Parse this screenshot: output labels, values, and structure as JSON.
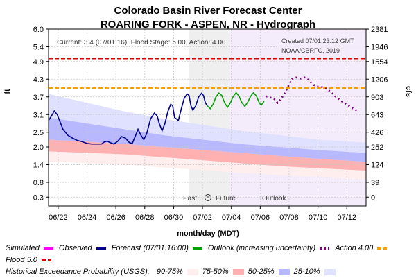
{
  "chart_data": {
    "type": "line",
    "title": "Colorado Basin River Forecast Center",
    "subtitle": "ROARING FORK - ASPEN, NR - Hydrograph",
    "xlabel": "month/day (MDT)",
    "ylabel": "ft",
    "y2label": "cfs",
    "ylim": [
      0.0,
      6.0
    ],
    "yticks": [
      "6.0",
      "5.4",
      "4.9",
      "4.3",
      "3.7",
      "3.1",
      "2.5",
      "2.0",
      "1.4",
      "0.8",
      "0.3"
    ],
    "y2ticks": [
      "2381",
      "1946",
      "1554",
      "1206",
      "903",
      "643",
      "426",
      "252",
      "124",
      "39",
      "0"
    ],
    "xticks": [
      "06/22",
      "06/24",
      "06/26",
      "06/28",
      "06/30",
      "07/02",
      "07/04",
      "07/06",
      "07/08",
      "07/10",
      "07/12"
    ],
    "grid": true,
    "annotation": "Current: 3.4 (07/01.16), Flood Stage: 5.00, Action: 4.00",
    "created": [
      "Created 07/01.23:12 GMT",
      "NOAA/CBRFC, 2019"
    ],
    "regions": {
      "past": "Past",
      "future": "Future",
      "outlook": "Outlook"
    },
    "thresholds": [
      {
        "name": "Flood 5.0",
        "value": 5.0,
        "color": "#dd0000"
      },
      {
        "name": "Action 4.00",
        "value": 4.0,
        "color": "#f5a000"
      }
    ],
    "series": [
      {
        "name": "Observed",
        "color": "#00008b",
        "points": [
          [
            0,
            2.9
          ],
          [
            0.3,
            3.05
          ],
          [
            0.6,
            3.22
          ],
          [
            0.9,
            3.1
          ],
          [
            1.2,
            2.85
          ],
          [
            1.5,
            2.6
          ],
          [
            2,
            2.4
          ],
          [
            2.5,
            2.3
          ],
          [
            3,
            2.22
          ],
          [
            3.5,
            2.18
          ],
          [
            4,
            2.12
          ],
          [
            4.5,
            2.1
          ],
          [
            5,
            2.1
          ],
          [
            5.5,
            2.1
          ],
          [
            5.8,
            2.17
          ],
          [
            6.1,
            2.2
          ],
          [
            6.4,
            2.15
          ],
          [
            6.8,
            2.1
          ],
          [
            7.2,
            2.2
          ],
          [
            7.6,
            2.35
          ],
          [
            8,
            2.3
          ],
          [
            8.4,
            2.15
          ],
          [
            8.7,
            2.12
          ],
          [
            9,
            2.35
          ],
          [
            9.3,
            2.6
          ],
          [
            9.6,
            2.4
          ],
          [
            9.9,
            2.25
          ],
          [
            10.2,
            2.45
          ],
          [
            10.6,
            2.95
          ],
          [
            11,
            3.15
          ],
          [
            11.3,
            3.05
          ],
          [
            11.5,
            2.8
          ],
          [
            11.8,
            2.55
          ],
          [
            12.1,
            2.8
          ],
          [
            12.4,
            3.2
          ],
          [
            12.7,
            3.45
          ],
          [
            12.9,
            3.4
          ],
          [
            13.1,
            3.0
          ],
          [
            13.5,
            2.9
          ],
          [
            13.8,
            3.3
          ],
          [
            14.1,
            3.65
          ],
          [
            14.4,
            3.8
          ],
          [
            14.6,
            3.75
          ],
          [
            14.8,
            3.4
          ],
          [
            15,
            3.25
          ],
          [
            15.3,
            3.4
          ],
          [
            15.6,
            3.7
          ],
          [
            15.9,
            3.82
          ],
          [
            16.1,
            3.75
          ],
          [
            16.3,
            3.5
          ],
          [
            16.5,
            3.4
          ]
        ]
      },
      {
        "name": "Forecast (07/01.16:00)",
        "color": "#00a000",
        "points": [
          [
            16.5,
            3.4
          ],
          [
            16.8,
            3.3
          ],
          [
            17.1,
            3.45
          ],
          [
            17.4,
            3.7
          ],
          [
            17.7,
            3.83
          ],
          [
            18,
            3.75
          ],
          [
            18.3,
            3.5
          ],
          [
            18.6,
            3.35
          ],
          [
            18.9,
            3.5
          ],
          [
            19.2,
            3.72
          ],
          [
            19.5,
            3.84
          ],
          [
            19.8,
            3.72
          ],
          [
            20.1,
            3.5
          ],
          [
            20.4,
            3.38
          ],
          [
            20.7,
            3.52
          ],
          [
            21,
            3.72
          ],
          [
            21.3,
            3.84
          ],
          [
            21.6,
            3.73
          ],
          [
            21.9,
            3.5
          ],
          [
            22.1,
            3.42
          ],
          [
            22.4,
            3.55
          ]
        ]
      },
      {
        "name": "Outlook (increasing uncertainty)",
        "color": "#800080",
        "points": [
          [
            22.6,
            3.72
          ],
          [
            23,
            3.68
          ],
          [
            23.4,
            3.65
          ],
          [
            23.8,
            3.5
          ],
          [
            24.2,
            3.65
          ],
          [
            24.6,
            3.85
          ],
          [
            24.9,
            4.05
          ],
          [
            25.3,
            4.3
          ],
          [
            25.7,
            4.36
          ],
          [
            26.2,
            4.32
          ],
          [
            26.6,
            4.36
          ],
          [
            27,
            4.28
          ],
          [
            27.4,
            4.15
          ],
          [
            27.8,
            4.05
          ],
          [
            28.2,
            4.05
          ],
          [
            28.6,
            4.02
          ],
          [
            29,
            3.95
          ],
          [
            29.4,
            3.85
          ],
          [
            29.8,
            3.72
          ],
          [
            30.2,
            3.62
          ],
          [
            30.6,
            3.52
          ],
          [
            31,
            3.45
          ],
          [
            31.4,
            3.35
          ],
          [
            31.8,
            3.28
          ],
          [
            32.2,
            3.2
          ]
        ]
      }
    ],
    "bands": [
      {
        "name": "90-75%",
        "color": "#ffeeee"
      },
      {
        "name": "75-50%",
        "color": "#ffb0b0"
      },
      {
        "name": "50-25%",
        "color": "#b8b8ff"
      },
      {
        "name": "25-10%",
        "color": "#e0e0ff"
      }
    ]
  },
  "legend": {
    "simulated": "Simulated",
    "observed": "Observed",
    "forecast": "Forecast (07/01.16:00)",
    "outlook": "Outlook (increasing uncertainty)",
    "action": "Action 4.00",
    "flood": "Flood 5.0",
    "hist_label": "Historical Exceedance Probability (USGS):",
    "b1": "90-75%",
    "b2": "75-50%",
    "b3": "50-25%",
    "b4": "25-10%"
  },
  "colors": {
    "simulated": "#ff00ff",
    "observed": "#00008b",
    "forecast": "#00a000",
    "outlook": "#800080",
    "action": "#f5a000",
    "flood": "#dd0000"
  }
}
